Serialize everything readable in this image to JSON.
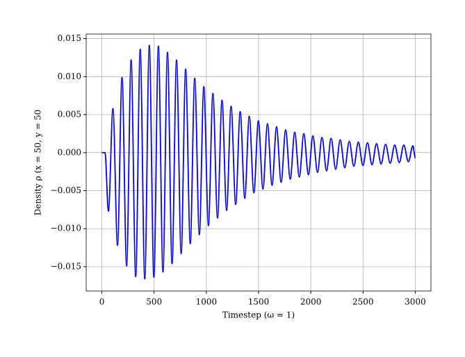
{
  "chart_data": {
    "type": "line",
    "xlabel": "Timestep (ω = 1)",
    "ylabel": "Density ρ (x = 50, y = 50",
    "color": "#0000ff",
    "grid": true,
    "xlim": [
      -150,
      3150
    ],
    "ylim": [
      -0.0182,
      0.0156
    ],
    "xticks": [
      0,
      500,
      1000,
      1500,
      2000,
      2500,
      3000
    ],
    "yticks": [
      {
        "value": -0.015,
        "label": "−0.015"
      },
      {
        "value": -0.01,
        "label": "−0.010"
      },
      {
        "value": -0.005,
        "label": "−0.005"
      },
      {
        "value": 0,
        "label": "0.000"
      },
      {
        "value": 0.005,
        "label": "0.005"
      },
      {
        "value": 0.01,
        "label": "0.010"
      },
      {
        "value": 0.015,
        "label": "0.015"
      }
    ],
    "x": [
      0,
      30,
      63,
      106,
      150,
      193,
      237,
      280,
      324,
      367,
      411,
      454,
      498,
      541,
      585,
      628,
      672,
      715,
      759,
      802,
      846,
      889,
      933,
      976,
      1020,
      1063,
      1107,
      1150,
      1194,
      1237,
      1281,
      1324,
      1368,
      1411,
      1455,
      1498,
      1542,
      1585,
      1629,
      1672,
      1716,
      1759,
      1803,
      1846,
      1890,
      1933,
      1977,
      2020,
      2064,
      2107,
      2151,
      2194,
      2238,
      2281,
      2325,
      2368,
      2412,
      2455,
      2499,
      2542,
      2586,
      2629,
      2673,
      2716,
      2760,
      2803,
      2847,
      2890,
      2934,
      2977,
      3000
    ],
    "values": [
      0,
      0,
      -0.0077,
      0.0058,
      -0.0122,
      0.0099,
      -0.0149,
      0.0122,
      -0.0163,
      0.0136,
      -0.0166,
      0.0141,
      -0.0164,
      0.014,
      -0.0157,
      0.0132,
      -0.0146,
      0.0122,
      -0.0133,
      0.011,
      -0.012,
      0.0098,
      -0.0108,
      0.0087,
      -0.0096,
      0.0078,
      -0.0086,
      0.0069,
      -0.0076,
      0.0061,
      -0.0068,
      0.0054,
      -0.006,
      0.0048,
      -0.0053,
      0.0042,
      -0.0048,
      0.0038,
      -0.0043,
      0.0034,
      -0.0039,
      0.003,
      -0.0035,
      0.0027,
      -0.0032,
      0.0025,
      -0.0029,
      0.0022,
      -0.0026,
      0.002,
      -0.0024,
      0.0019,
      -0.0022,
      0.0017,
      -0.002,
      0.0015,
      -0.0018,
      0.0014,
      -0.0017,
      0.0013,
      -0.0016,
      0.0012,
      -0.0015,
      0.0011,
      -0.0014,
      0.001,
      -0.0013,
      0.001,
      -0.0012,
      0.0009,
      -0.0007
    ]
  }
}
